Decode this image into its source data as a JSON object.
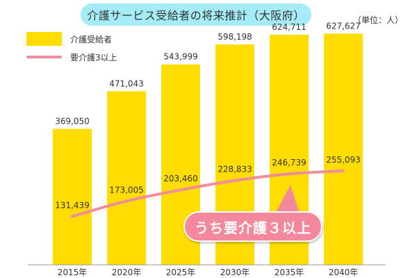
{
  "chart_data": {
    "type": "bar",
    "title": "介護サービス受給者の将来推計（大阪府）",
    "unit": "（単位：人）",
    "categories": [
      "2015年",
      "2020年",
      "2025年",
      "2030年",
      "2035年",
      "2040年"
    ],
    "series": [
      {
        "name": "介護受給者",
        "type": "bar",
        "values": [
          369050,
          471043,
          543999,
          598198,
          624711,
          627627
        ],
        "labels": [
          "369,050",
          "471,043",
          "543,999",
          "598,198",
          "624,711",
          "627,627"
        ],
        "color": "#ffdd00"
      },
      {
        "name": "要介護3以上",
        "type": "line",
        "values": [
          131439,
          173005,
          203460,
          228833,
          246739,
          255093
        ],
        "labels": [
          "131,439",
          "173,005",
          "203,460",
          "228,833",
          "246,739",
          "255,093"
        ],
        "color": "#f08ca0"
      }
    ],
    "callout": "うち要介護３以上",
    "ylim": [
      0,
      700000
    ],
    "grid": false,
    "legend_position": "top-left"
  },
  "colors": {
    "bar": "#ffdd00",
    "line": "#f08ca0",
    "title_background": "#a6ecf7",
    "callout_background": "#f4889c",
    "baseline": "#999999"
  }
}
